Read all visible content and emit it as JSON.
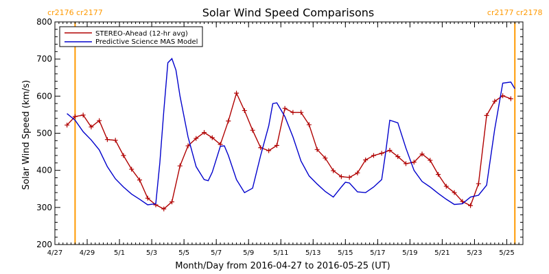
{
  "chart_data": {
    "type": "line",
    "title": "Solar Wind Speed Comparisons",
    "xlabel": "Month/Day from 2016-04-27 to 2016-05-25 (UT)",
    "ylabel": "Solar Wind Speed (km/s)",
    "xlim": [
      "2016-04-27",
      "2016-05-26"
    ],
    "ylim": [
      200,
      800
    ],
    "y_ticks": [
      200,
      300,
      400,
      500,
      600,
      700,
      800
    ],
    "x_ticks": [
      "4/27",
      "4/29",
      "5/1",
      "5/3",
      "5/5",
      "5/7",
      "5/9",
      "5/11",
      "5/13",
      "5/15",
      "5/17",
      "5/19",
      "5/21",
      "5/23",
      "5/25"
    ],
    "x_tick_dates": [
      "2016-04-27",
      "2016-04-29",
      "2016-05-01",
      "2016-05-03",
      "2016-05-05",
      "2016-05-07",
      "2016-05-09",
      "2016-05-11",
      "2016-05-13",
      "2016-05-15",
      "2016-05-17",
      "2016-05-19",
      "2016-05-21",
      "2016-05-23",
      "2016-05-25"
    ],
    "grid": false,
    "legend_position": "top-left",
    "carrington_markers": [
      {
        "date": "2016-04-28T06:00",
        "label": "cr2176 cr2177",
        "color": "#ff9900"
      },
      {
        "date": "2016-05-25T12:00",
        "label": "cr2177 cr2178",
        "color": "#ff9900"
      }
    ],
    "series": [
      {
        "name": "STEREO-Ahead (12-hr avg)",
        "color": "#b00000",
        "marker": "plus",
        "points": [
          [
            "2016-04-27T18:00",
            522
          ],
          [
            "2016-04-28T06:00",
            545
          ],
          [
            "2016-04-28T18:00",
            549
          ],
          [
            "2016-04-29T06:00",
            517
          ],
          [
            "2016-04-29T18:00",
            534
          ],
          [
            "2016-04-30T06:00",
            483
          ],
          [
            "2016-04-30T18:00",
            481
          ],
          [
            "2016-05-01T06:00",
            440
          ],
          [
            "2016-05-01T18:00",
            403
          ],
          [
            "2016-05-02T06:00",
            374
          ],
          [
            "2016-05-02T18:00",
            325
          ],
          [
            "2016-05-03T06:00",
            307
          ],
          [
            "2016-05-03T18:00",
            296
          ],
          [
            "2016-05-04T06:00",
            315
          ],
          [
            "2016-05-04T18:00",
            412
          ],
          [
            "2016-05-05T06:00",
            466
          ],
          [
            "2016-05-05T18:00",
            486
          ],
          [
            "2016-05-06T06:00",
            502
          ],
          [
            "2016-05-06T18:00",
            488
          ],
          [
            "2016-05-07T06:00",
            470
          ],
          [
            "2016-05-07T18:00",
            533
          ],
          [
            "2016-05-08T06:00",
            608
          ],
          [
            "2016-05-08T18:00",
            561
          ],
          [
            "2016-05-09T06:00",
            508
          ],
          [
            "2016-05-09T18:00",
            461
          ],
          [
            "2016-05-10T06:00",
            453
          ],
          [
            "2016-05-10T18:00",
            467
          ],
          [
            "2016-05-11T06:00",
            567
          ],
          [
            "2016-05-11T18:00",
            556
          ],
          [
            "2016-05-12T06:00",
            556
          ],
          [
            "2016-05-12T18:00",
            523
          ],
          [
            "2016-05-13T06:00",
            456
          ],
          [
            "2016-05-13T18:00",
            433
          ],
          [
            "2016-05-14T06:00",
            399
          ],
          [
            "2016-05-14T18:00",
            383
          ],
          [
            "2016-05-15T06:00",
            381
          ],
          [
            "2016-05-15T18:00",
            393
          ],
          [
            "2016-05-16T06:00",
            428
          ],
          [
            "2016-05-16T18:00",
            440
          ],
          [
            "2016-05-17T06:00",
            446
          ],
          [
            "2016-05-17T18:00",
            454
          ],
          [
            "2016-05-18T06:00",
            437
          ],
          [
            "2016-05-18T18:00",
            418
          ],
          [
            "2016-05-19T06:00",
            422
          ],
          [
            "2016-05-19T18:00",
            444
          ],
          [
            "2016-05-20T06:00",
            427
          ],
          [
            "2016-05-20T18:00",
            389
          ],
          [
            "2016-05-21T06:00",
            357
          ],
          [
            "2016-05-21T18:00",
            340
          ],
          [
            "2016-05-22T06:00",
            316
          ],
          [
            "2016-05-22T18:00",
            305
          ],
          [
            "2016-05-23T06:00",
            364
          ],
          [
            "2016-05-23T18:00",
            548
          ],
          [
            "2016-05-24T06:00",
            586
          ],
          [
            "2016-05-24T18:00",
            601
          ],
          [
            "2016-05-25T06:00",
            593
          ]
        ]
      },
      {
        "name": "Predictive Science MAS Model",
        "color": "#0000cc",
        "marker": "none",
        "points": [
          [
            "2016-04-27T18:00",
            553
          ],
          [
            "2016-04-28T06:00",
            535
          ],
          [
            "2016-04-28T18:00",
            504
          ],
          [
            "2016-04-29T06:00",
            482
          ],
          [
            "2016-04-29T18:00",
            455
          ],
          [
            "2016-04-30T06:00",
            410
          ],
          [
            "2016-04-30T18:00",
            377
          ],
          [
            "2016-05-01T06:00",
            355
          ],
          [
            "2016-05-01T18:00",
            336
          ],
          [
            "2016-05-02T06:00",
            322
          ],
          [
            "2016-05-02T18:00",
            307
          ],
          [
            "2016-05-03T06:00",
            310
          ],
          [
            "2016-05-03T12:00",
            420
          ],
          [
            "2016-05-03T18:00",
            560
          ],
          [
            "2016-05-04T00:00",
            690
          ],
          [
            "2016-05-04T06:00",
            701
          ],
          [
            "2016-05-04T12:00",
            670
          ],
          [
            "2016-05-04T18:00",
            600
          ],
          [
            "2016-05-05T06:00",
            490
          ],
          [
            "2016-05-05T18:00",
            410
          ],
          [
            "2016-05-06T06:00",
            375
          ],
          [
            "2016-05-06T12:00",
            372
          ],
          [
            "2016-05-06T18:00",
            395
          ],
          [
            "2016-05-07T06:00",
            465
          ],
          [
            "2016-05-07T12:00",
            466
          ],
          [
            "2016-05-07T18:00",
            440
          ],
          [
            "2016-05-08T06:00",
            375
          ],
          [
            "2016-05-08T18:00",
            340
          ],
          [
            "2016-05-09T06:00",
            352
          ],
          [
            "2016-05-09T18:00",
            440
          ],
          [
            "2016-05-10T06:00",
            520
          ],
          [
            "2016-05-10T12:00",
            580
          ],
          [
            "2016-05-10T18:00",
            582
          ],
          [
            "2016-05-11T06:00",
            545
          ],
          [
            "2016-05-11T18:00",
            490
          ],
          [
            "2016-05-12T06:00",
            425
          ],
          [
            "2016-05-12T18:00",
            385
          ],
          [
            "2016-05-13T06:00",
            363
          ],
          [
            "2016-05-13T18:00",
            343
          ],
          [
            "2016-05-14T06:00",
            328
          ],
          [
            "2016-05-14T18:00",
            355
          ],
          [
            "2016-05-15T00:00",
            368
          ],
          [
            "2016-05-15T06:00",
            366
          ],
          [
            "2016-05-15T18:00",
            342
          ],
          [
            "2016-05-16T06:00",
            340
          ],
          [
            "2016-05-16T18:00",
            355
          ],
          [
            "2016-05-17T06:00",
            375
          ],
          [
            "2016-05-17T12:00",
            450
          ],
          [
            "2016-05-17T18:00",
            535
          ],
          [
            "2016-05-18T06:00",
            528
          ],
          [
            "2016-05-18T18:00",
            460
          ],
          [
            "2016-05-19T06:00",
            400
          ],
          [
            "2016-05-19T18:00",
            370
          ],
          [
            "2016-05-20T06:00",
            355
          ],
          [
            "2016-05-20T18:00",
            338
          ],
          [
            "2016-05-21T06:00",
            322
          ],
          [
            "2016-05-21T18:00",
            308
          ],
          [
            "2016-05-22T06:00",
            310
          ],
          [
            "2016-05-22T18:00",
            328
          ],
          [
            "2016-05-23T06:00",
            333
          ],
          [
            "2016-05-23T18:00",
            360
          ],
          [
            "2016-05-24T06:00",
            510
          ],
          [
            "2016-05-24T18:00",
            635
          ],
          [
            "2016-05-25T06:00",
            638
          ],
          [
            "2016-05-25T12:00",
            620
          ]
        ]
      }
    ]
  }
}
